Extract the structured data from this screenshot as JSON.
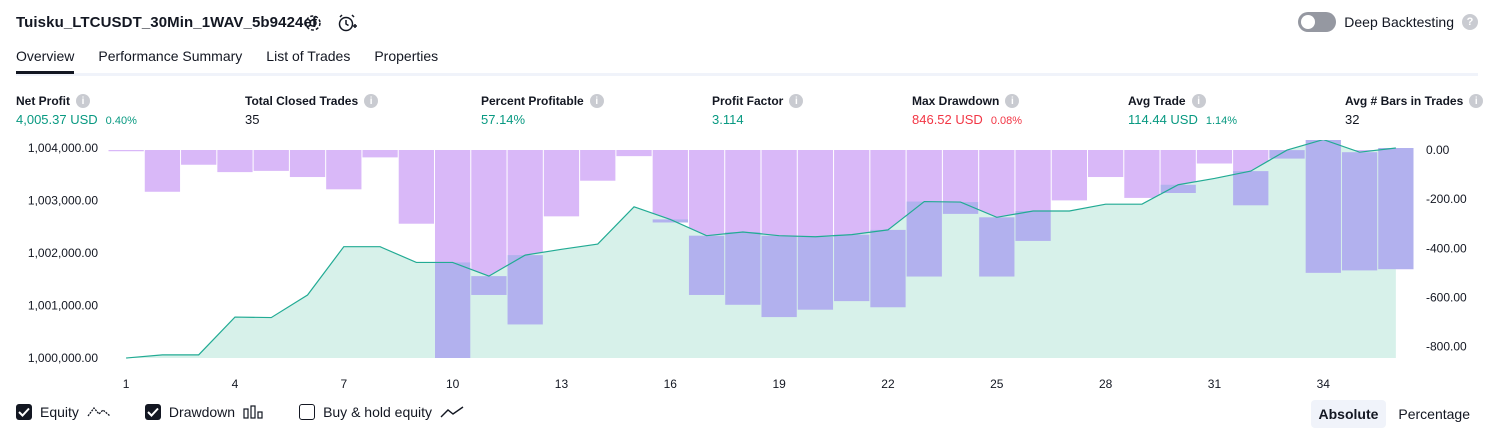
{
  "header": {
    "title": "Tuisku_LTCUSDT_30Min_1WAV_5b9424ef",
    "deep_backtesting_label": "Deep Backtesting",
    "help_glyph": "?"
  },
  "tabs": [
    {
      "label": "Overview",
      "active": true
    },
    {
      "label": "Performance Summary",
      "active": false
    },
    {
      "label": "List of Trades",
      "active": false
    },
    {
      "label": "Properties",
      "active": false
    }
  ],
  "stats": {
    "net_profit": {
      "label": "Net Profit",
      "value": "4,005.37 USD",
      "sub": "0.40%"
    },
    "total_closed_trades": {
      "label": "Total Closed Trades",
      "value": "35"
    },
    "percent_profitable": {
      "label": "Percent Profitable",
      "value": "57.14%"
    },
    "profit_factor": {
      "label": "Profit Factor",
      "value": "3.114"
    },
    "max_drawdown": {
      "label": "Max Drawdown",
      "value": "846.52 USD",
      "sub": "0.08%"
    },
    "avg_trade": {
      "label": "Avg Trade",
      "value": "114.44 USD",
      "sub": "1.14%"
    },
    "avg_bars": {
      "label": "Avg # Bars in Trades",
      "value": "32"
    }
  },
  "info_glyph": "i",
  "legend": {
    "equity": "Equity",
    "drawdown": "Drawdown",
    "buy_hold": "Buy & hold equity"
  },
  "modes": {
    "absolute": "Absolute",
    "percentage": "Percentage"
  },
  "colors": {
    "equity_line": "#22ab94",
    "equity_fill": "#d7f1ea",
    "drawdown_bar": "#d9b8f8",
    "overlap": "#b2b1ee",
    "profit_green": "#089981",
    "loss_red": "#f23645"
  },
  "chart_data": {
    "type": "line",
    "x_ticks": [
      1,
      4,
      7,
      10,
      13,
      16,
      19,
      22,
      25,
      28,
      31,
      34
    ],
    "left_axis": {
      "ticks": [
        "1,000,000.00",
        "1,001,000.00",
        "1,002,000.00",
        "1,003,000.00",
        "1,004,000.00"
      ],
      "range": [
        1000000,
        1004000
      ]
    },
    "right_axis": {
      "ticks": [
        "0.00",
        "-200.00",
        "-400.00",
        "-600.00",
        "-800.00"
      ],
      "range": [
        -846.52,
        0
      ]
    },
    "series": [
      {
        "type": "area",
        "axis": "left",
        "x": [
          1,
          2,
          3,
          4,
          5,
          6,
          7,
          8,
          9,
          10,
          11,
          12,
          13,
          14,
          15,
          16,
          17,
          18,
          19,
          20,
          21,
          22,
          23,
          24,
          25,
          26,
          27,
          28,
          29,
          30,
          31,
          32,
          33,
          34,
          35,
          36
        ],
        "values": [
          1000000,
          1000060,
          1000060,
          1000780,
          1000770,
          1001200,
          1002120,
          1002120,
          1001820,
          1001820,
          1001560,
          1001960,
          1002070,
          1002170,
          1002880,
          1002640,
          1002330,
          1002400,
          1002330,
          1002310,
          1002350,
          1002440,
          1002980,
          1002970,
          1002680,
          1002800,
          1002800,
          1002930,
          1002930,
          1003300,
          1003420,
          1003560,
          1003960,
          1004160,
          1003920,
          1004000
        ]
      },
      {
        "type": "bar",
        "axis": "right",
        "x": [
          1,
          2,
          3,
          4,
          5,
          6,
          7,
          8,
          9,
          10,
          11,
          12,
          13,
          14,
          15,
          16,
          17,
          18,
          19,
          20,
          21,
          22,
          23,
          24,
          25,
          26,
          27,
          28,
          29,
          30,
          31,
          32,
          33,
          34,
          35,
          36
        ],
        "values": [
          -5,
          -170,
          -60,
          -90,
          -85,
          -110,
          -160,
          -30,
          -300,
          -846.52,
          -590,
          -710,
          -270,
          -125,
          -25,
          -295,
          -590,
          -630,
          -680,
          -650,
          -615,
          -640,
          -515,
          -260,
          -515,
          -370,
          -205,
          -110,
          -195,
          -175,
          -55,
          -225,
          -35,
          -500,
          -490,
          -485
        ]
      }
    ]
  }
}
